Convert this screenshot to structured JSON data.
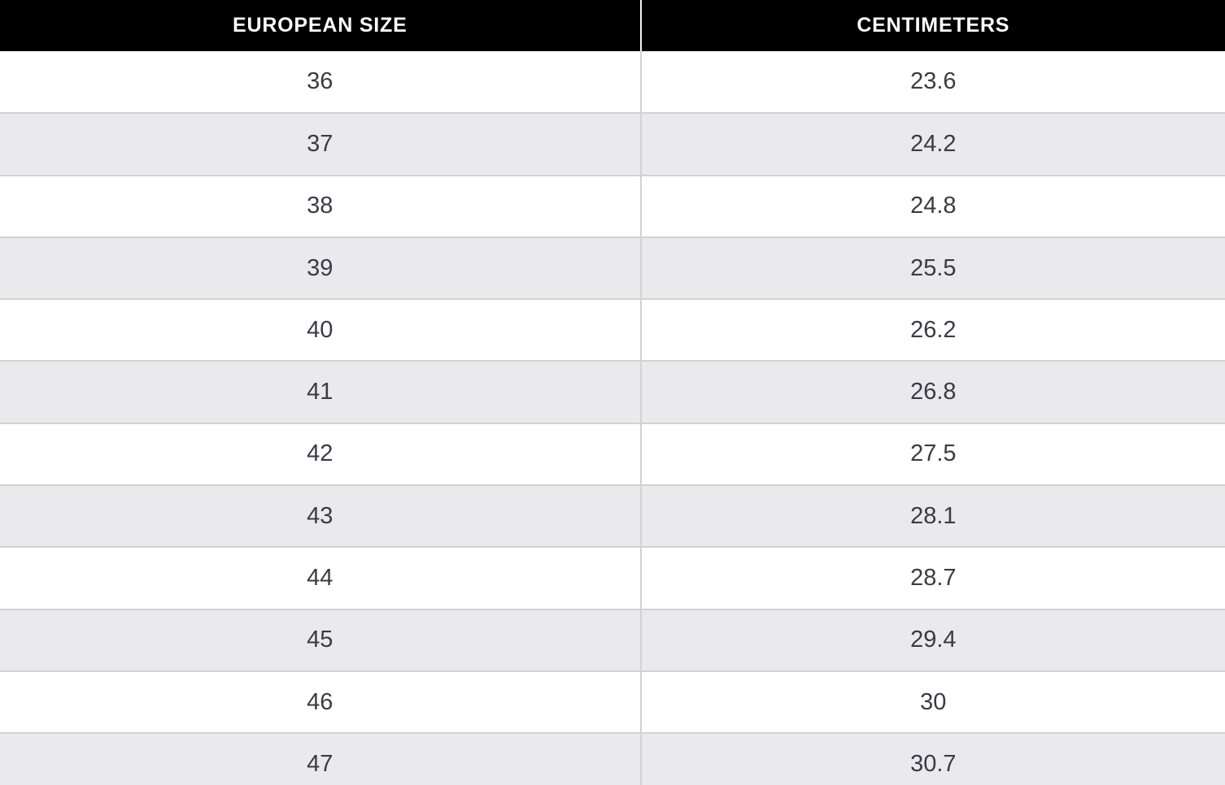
{
  "table": {
    "columns": [
      {
        "label": "EUROPEAN SIZE"
      },
      {
        "label": "CENTIMETERS"
      }
    ],
    "rows": [
      [
        "36",
        "23.6"
      ],
      [
        "37",
        "24.2"
      ],
      [
        "38",
        "24.8"
      ],
      [
        "39",
        "25.5"
      ],
      [
        "40",
        "26.2"
      ],
      [
        "41",
        "26.8"
      ],
      [
        "42",
        "27.5"
      ],
      [
        "43",
        "28.1"
      ],
      [
        "44",
        "28.7"
      ],
      [
        "45",
        "29.4"
      ],
      [
        "46",
        "30"
      ],
      [
        "47",
        "30.7"
      ]
    ]
  },
  "colors": {
    "header_bg": "#000000",
    "header_text": "#ffffff",
    "row_bg": "#ffffff",
    "row_alt_bg": "#eae9eb",
    "cell_text": "#3c3a47",
    "border": "#d2d1d5"
  }
}
